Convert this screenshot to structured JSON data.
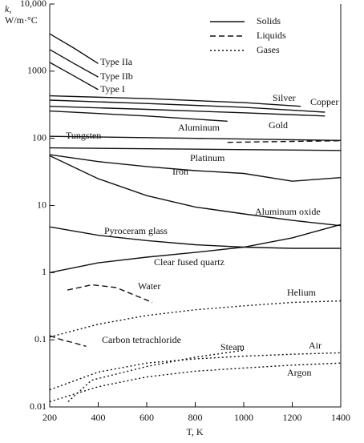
{
  "chart_data": {
    "type": "line",
    "xlabel": "T, K",
    "ylabel": [
      "k,",
      "W/m·°C"
    ],
    "xlim": [
      200,
      1400
    ],
    "xticks": [
      200,
      400,
      600,
      800,
      1000,
      1200,
      1400
    ],
    "ylim": [
      0.01,
      10000
    ],
    "ylog": true,
    "yticks": [
      0.01,
      0.1,
      1,
      10,
      100,
      1000,
      {
        "value": 10000,
        "label": "10,000"
      }
    ],
    "color": "#111111",
    "legend": [
      {
        "label": "Solids",
        "style": "solid"
      },
      {
        "label": "Liquids",
        "style": "dashed"
      },
      {
        "label": "Gases",
        "style": "dotted"
      }
    ],
    "series": [
      {
        "name": "Type IIa",
        "style": "solid",
        "x": [
          200,
          300,
          400
        ],
        "values": [
          3600,
          2200,
          1300
        ]
      },
      {
        "name": "Type IIb",
        "style": "solid",
        "x": [
          200,
          300,
          400
        ],
        "values": [
          2100,
          1300,
          820
        ]
      },
      {
        "name": "Type I",
        "style": "solid",
        "x": [
          200,
          300,
          400
        ],
        "values": [
          1350,
          850,
          530
        ]
      },
      {
        "name": "Silver",
        "style": "solid",
        "x": [
          200,
          600,
          1000,
          1235
        ],
        "values": [
          430,
          390,
          340,
          300
        ]
      },
      {
        "name": "Copper",
        "style": "solid",
        "x": [
          200,
          600,
          1000,
          1335
        ],
        "values": [
          370,
          330,
          290,
          245
        ]
      },
      {
        "name": "Gold",
        "style": "solid",
        "x": [
          200,
          600,
          1000,
          1335
        ],
        "values": [
          300,
          270,
          240,
          215
        ]
      },
      {
        "name": "Aluminum",
        "style": "solid",
        "x": [
          200,
          600,
          933
        ],
        "values": [
          255,
          215,
          180
        ]
      },
      {
        "style": "dashed",
        "x": [
          933,
          1200,
          1400
        ],
        "values": [
          87,
          90,
          92
        ]
      },
      {
        "name": "Tungsten",
        "style": "solid",
        "x": [
          200,
          800,
          1400
        ],
        "values": [
          107,
          100,
          93
        ]
      },
      {
        "name": "Platinum",
        "style": "solid",
        "x": [
          200,
          800,
          1400
        ],
        "values": [
          72,
          69,
          66
        ]
      },
      {
        "name": "Iron",
        "style": "solid",
        "x": [
          200,
          400,
          600,
          800,
          1000,
          1200,
          1400
        ],
        "values": [
          57,
          45,
          38,
          33,
          30,
          23,
          26
        ]
      },
      {
        "name": "Aluminum oxide",
        "style": "solid",
        "x": [
          200,
          400,
          600,
          800,
          1000,
          1200,
          1400
        ],
        "values": [
          55,
          25,
          14,
          9.5,
          7.5,
          6,
          5
        ]
      },
      {
        "name": "Pyroceram glass",
        "style": "solid",
        "x": [
          200,
          400,
          600,
          800,
          1000,
          1200,
          1400
        ],
        "values": [
          4.8,
          3.6,
          3,
          2.6,
          2.4,
          2.3,
          2.3
        ]
      },
      {
        "name": "Clear fused quartz",
        "style": "solid",
        "x": [
          200,
          400,
          600,
          800,
          1000,
          1200,
          1400
        ],
        "values": [
          1,
          1.4,
          1.7,
          2,
          2.4,
          3.3,
          5.2
        ]
      },
      {
        "name": "Water",
        "style": "dashed",
        "x": [
          273,
          373,
          473,
          623
        ],
        "values": [
          0.55,
          0.66,
          0.6,
          0.36
        ]
      },
      {
        "name": "Carbon tetrachloride",
        "style": "dashed",
        "x": [
          200,
          250,
          300,
          350
        ],
        "values": [
          0.115,
          0.1,
          0.09,
          0.08
        ]
      },
      {
        "name": "Helium",
        "style": "dotted",
        "x": [
          200,
          400,
          600,
          800,
          1000,
          1200,
          1400
        ],
        "values": [
          0.11,
          0.17,
          0.23,
          0.28,
          0.32,
          0.36,
          0.38
        ]
      },
      {
        "name": "Steam",
        "style": "dotted",
        "x": [
          276,
          373,
          600,
          800,
          1000
        ],
        "values": [
          0.012,
          0.025,
          0.04,
          0.055,
          0.07
        ]
      },
      {
        "name": "Air",
        "style": "dotted",
        "x": [
          200,
          400,
          600,
          800,
          1000,
          1200,
          1400
        ],
        "values": [
          0.018,
          0.033,
          0.045,
          0.052,
          0.057,
          0.061,
          0.064
        ]
      },
      {
        "name": "Argon",
        "style": "dotted",
        "x": [
          200,
          400,
          600,
          800,
          1000,
          1200,
          1400
        ],
        "values": [
          0.012,
          0.02,
          0.028,
          0.034,
          0.038,
          0.042,
          0.045
        ]
      }
    ]
  }
}
